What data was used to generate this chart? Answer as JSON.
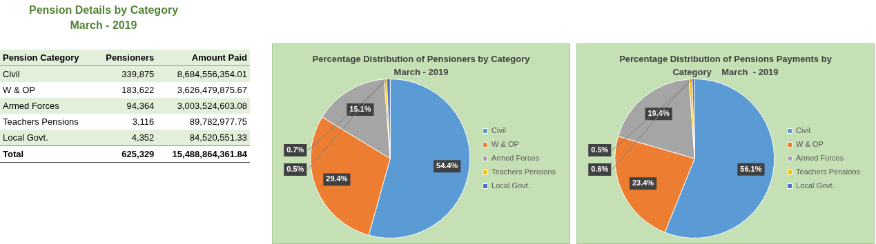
{
  "chart_data": [
    {
      "type": "other",
      "title": "Pension Details by  Category",
      "subtitle": "March - 2019",
      "annotations": [
        "Pension Category",
        "Pensioners",
        "Amount Paid",
        "Civil",
        "339,875",
        "8,684,556,354.01",
        "W & OP",
        "183,622",
        "3,626,479,875.67",
        "Armed Forces",
        "94,364",
        "3,003,524,603.08",
        "Teachers Pensions",
        "3,116",
        "89,782,977.75",
        "Local Govt.",
        "4,352",
        "84,520,551.33",
        "Total",
        "625,329",
        "15,488,864,361.84"
      ]
    },
    {
      "type": "pie",
      "title": "Percentage Distribution of Pensioners by Category",
      "subtitle": "March - 2019",
      "legend": "right",
      "categories": [
        "Civil",
        "W & OP",
        "Armed Forces",
        "Teachers Pensions",
        "Local Govt."
      ],
      "values": [
        54.4,
        29.4,
        15.1,
        0.5,
        0.7
      ],
      "value_labels": [
        "54.4%",
        "29.4%",
        "15.1%",
        "0.5%",
        "0.7%"
      ],
      "colors": [
        "#5b9bd5",
        "#ed7d31",
        "#a5a5a5",
        "#ffc000",
        "#4472c4"
      ]
    },
    {
      "type": "pie",
      "title": "Percentage Distribution of Pensions Payments by",
      "subtitle": "Category    March  - 2019",
      "legend": "right",
      "categories": [
        "Civil",
        "W & OP",
        "Armed Forces",
        "Teachers Pensions",
        "Local Govt."
      ],
      "values": [
        56.1,
        23.4,
        19.4,
        0.6,
        0.5
      ],
      "value_labels": [
        "56.1%",
        "23.4%",
        "19.4%",
        "0.6%",
        "0.5%"
      ],
      "colors": [
        "#5b9bd5",
        "#ed7d31",
        "#a5a5a5",
        "#ffc000",
        "#4472c4"
      ]
    }
  ]
}
